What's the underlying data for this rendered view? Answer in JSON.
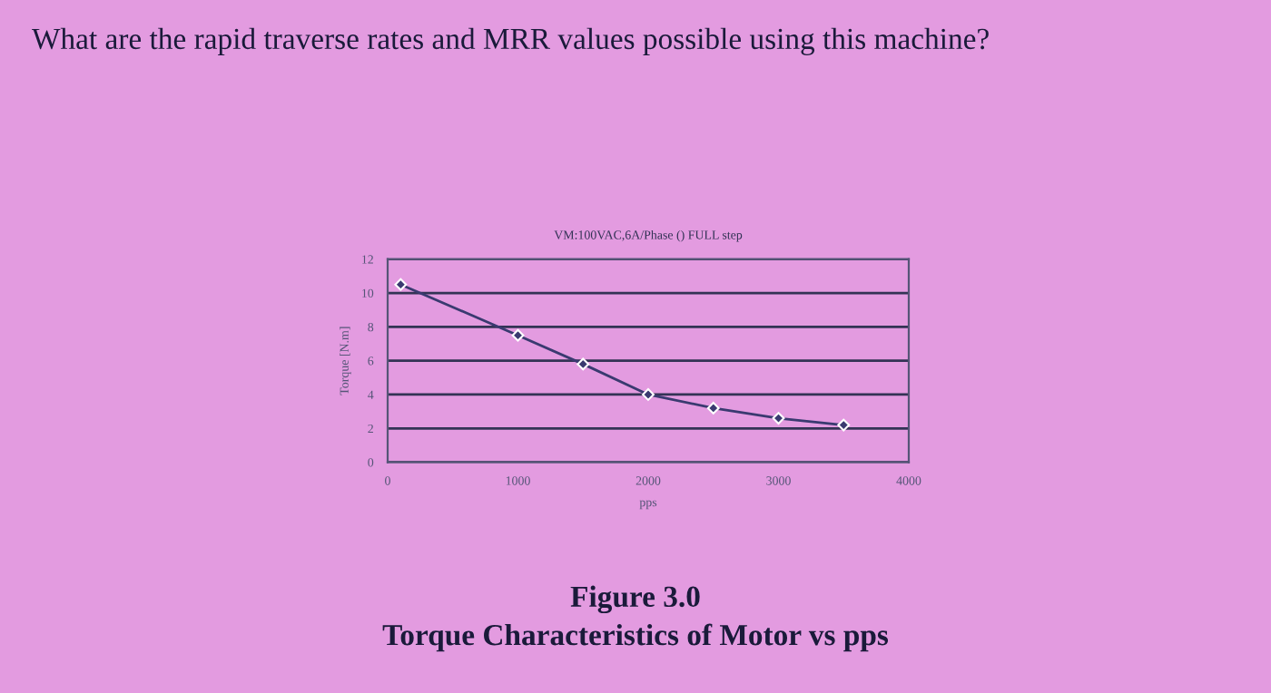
{
  "chart_data": {
    "type": "line",
    "title": "VM:100VAC,6A/Phase () FULL step",
    "xlabel": "pps",
    "ylabel": "Torque [N.m]",
    "x": [
      100,
      1000,
      1500,
      2000,
      2500,
      3000,
      3500
    ],
    "series": [
      {
        "color": "#3a3a70",
        "values": [
          10.5,
          7.5,
          5.8,
          4.0,
          3.2,
          2.6,
          2.2
        ]
      }
    ],
    "xlim": [
      0,
      4000
    ],
    "xticks": [
      0,
      1000,
      2000,
      3000,
      4000
    ],
    "ylim": [
      0,
      12
    ],
    "yticks": [
      0,
      2,
      4,
      6,
      8,
      10,
      12
    ],
    "grid": "y",
    "marker": "diamond",
    "line_style": "solid",
    "legend": false,
    "annotations": [
      "What are the rapid traverse rates and MRR values possible using this machine?",
      "Figure 3.0",
      "Torque Characteristics of Motor vs pps"
    ]
  }
}
